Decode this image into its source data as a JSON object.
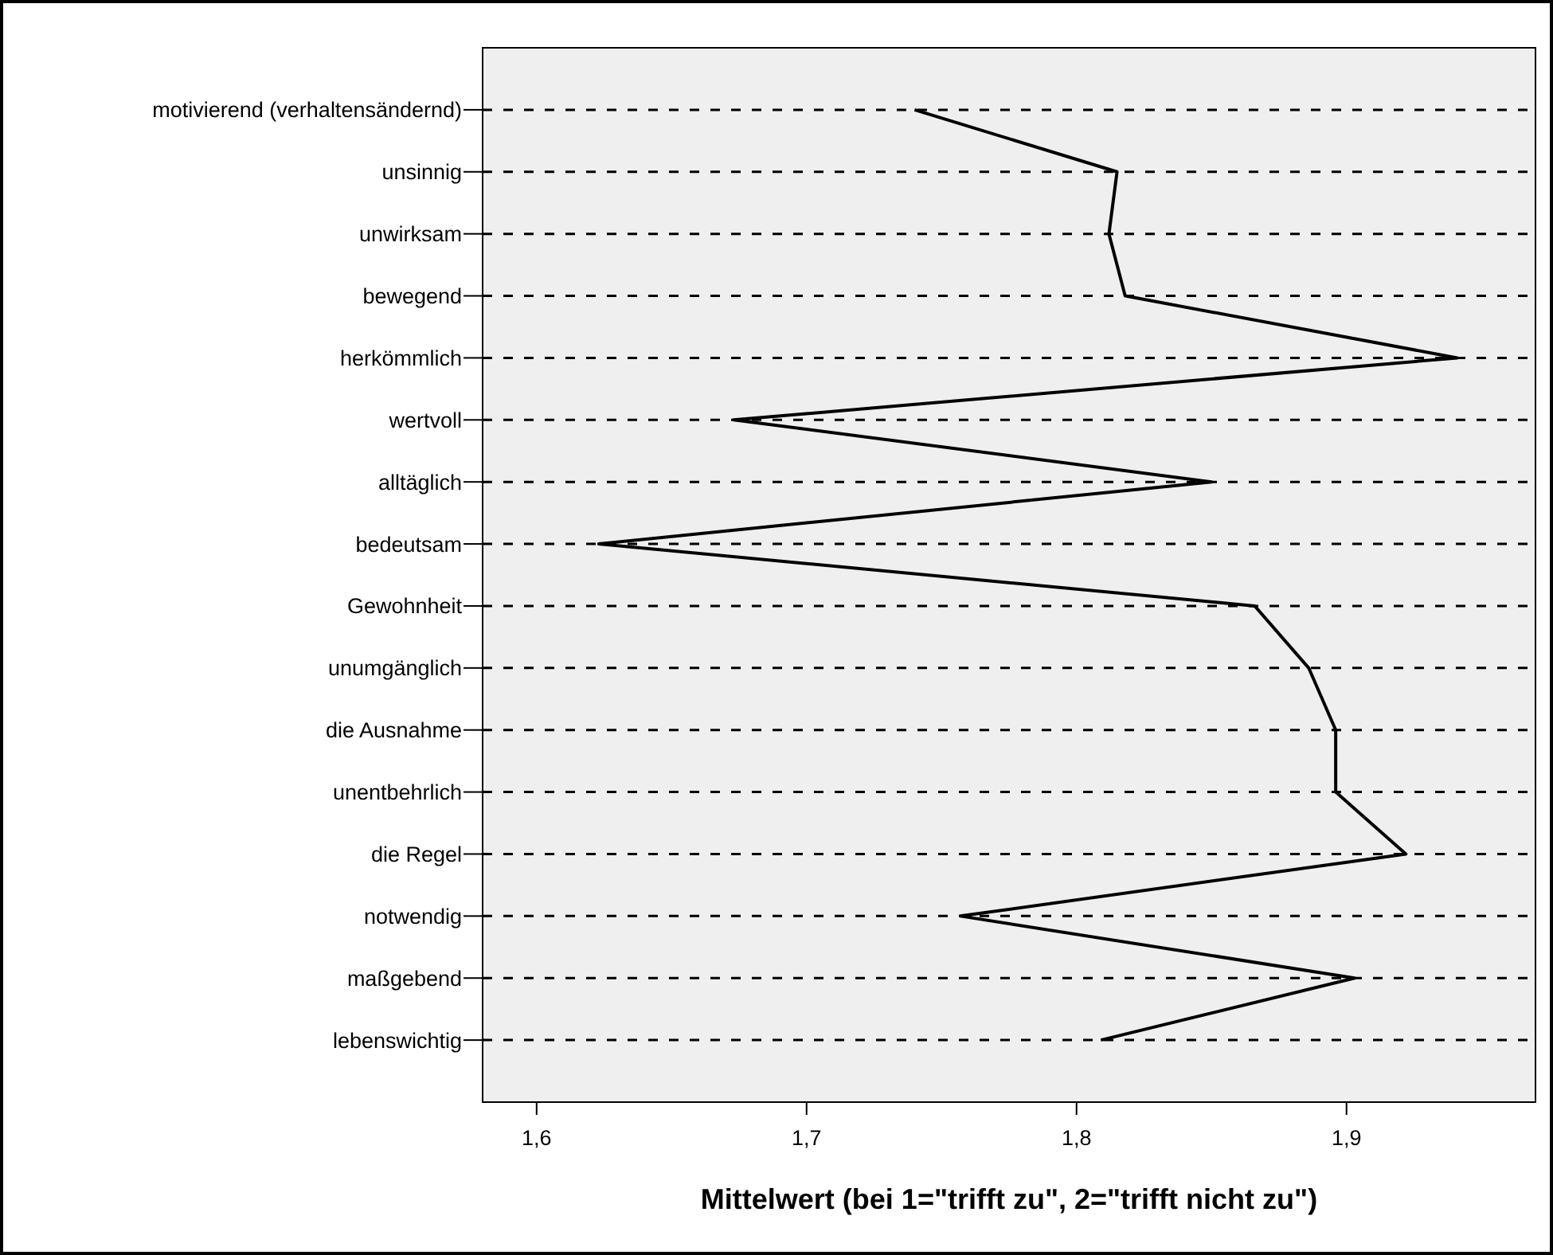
{
  "chart_data": {
    "type": "line",
    "orientation": "horizontal",
    "xlabel": "Mittelwert (bei 1=\"trifft zu\", 2=\"trifft nicht zu\")",
    "categories": [
      "motivierend (verhaltensändernd)",
      "unsinnig",
      "unwirksam",
      "bewegend",
      "herkömmlich",
      "wertvoll",
      "alltäglich",
      "bedeutsam",
      "Gewohnheit",
      "unumgänglich",
      "die Ausnahme",
      "unentbehrlich",
      "die Regel",
      "notwendig",
      "maßgebend",
      "lebenswichtig"
    ],
    "values": [
      1.74,
      1.815,
      1.812,
      1.818,
      1.941,
      1.673,
      1.85,
      1.623,
      1.866,
      1.886,
      1.896,
      1.896,
      1.922,
      1.757,
      1.903,
      1.809
    ],
    "color": "#000000",
    "xlim": [
      1.58,
      1.97
    ],
    "xticks": [
      {
        "value": 1.6,
        "label": "1,6"
      },
      {
        "value": 1.7,
        "label": "1,7"
      },
      {
        "value": 1.8,
        "label": "1,8"
      },
      {
        "value": 1.9,
        "label": "1,9"
      }
    ],
    "grid": "y"
  }
}
